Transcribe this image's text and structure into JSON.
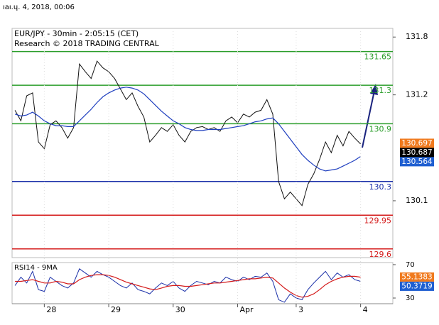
{
  "timestamp": "ıaı.ɥ. 4, 2018, 00:06",
  "chart_data": [
    {
      "type": "line",
      "title": "EUR/JPY - 30min - 2:05:15 (CET)",
      "subtitle": "Research © 2018 TRADING CENTRAL",
      "xlim": [
        -0.5,
        64.5
      ],
      "ylim": [
        129.51,
        131.89
      ],
      "xticks": [
        {
          "value": 5,
          "label": "28"
        },
        {
          "value": 16,
          "label": "29"
        },
        {
          "value": 27,
          "label": "30"
        },
        {
          "value": 38,
          "label": "Apr"
        },
        {
          "value": 48,
          "label": "3"
        },
        {
          "value": 59,
          "label": "4"
        }
      ],
      "yticks": [
        131.8,
        131.2,
        130.1
      ],
      "series": [
        {
          "color": "#111111",
          "values": [
            131.04,
            130.93,
            131.19,
            131.22,
            130.71,
            130.64,
            130.89,
            130.93,
            130.86,
            130.75,
            130.86,
            131.52,
            131.44,
            131.37,
            131.55,
            131.48,
            131.44,
            131.37,
            131.26,
            131.15,
            131.22,
            131.08,
            130.97,
            130.71,
            130.78,
            130.86,
            130.82,
            130.89,
            130.78,
            130.71,
            130.82,
            130.86,
            130.87,
            130.84,
            130.86,
            130.82,
            130.93,
            130.97,
            130.91,
            131.0,
            130.97,
            131.02,
            131.04,
            131.15,
            131.0,
            130.3,
            130.12,
            130.19,
            130.12,
            130.05,
            130.27,
            130.38,
            130.53,
            130.71,
            130.6,
            130.78,
            130.67,
            130.82,
            130.75,
            130.69
          ]
        },
        {
          "color": "#1f3fbf",
          "values": [
            131.0,
            130.98,
            130.99,
            131.02,
            130.98,
            130.93,
            130.9,
            130.88,
            130.88,
            130.87,
            130.87,
            130.93,
            130.99,
            131.05,
            131.12,
            131.18,
            131.22,
            131.25,
            131.27,
            131.28,
            131.27,
            131.25,
            131.21,
            131.15,
            131.09,
            131.03,
            130.98,
            130.93,
            130.9,
            130.86,
            130.84,
            130.83,
            130.83,
            130.84,
            130.84,
            130.84,
            130.85,
            130.86,
            130.87,
            130.88,
            130.9,
            130.92,
            130.93,
            130.95,
            130.96,
            130.9,
            130.82,
            130.74,
            130.66,
            130.58,
            130.52,
            130.47,
            130.43,
            130.41,
            130.42,
            130.43,
            130.46,
            130.49,
            130.52,
            130.56
          ]
        }
      ],
      "levels": [
        {
          "value": 131.65,
          "color": "#2a9d2a"
        },
        {
          "value": 131.3,
          "color": "#2a9d2a"
        },
        {
          "value": 130.9,
          "color": "#2a9d2a"
        },
        {
          "value": 130.3,
          "color": "#1a2fa8"
        },
        {
          "value": 129.95,
          "color": "#d41a1a"
        },
        {
          "value": 129.6,
          "color": "#d41a1a"
        }
      ],
      "price_tags": [
        {
          "value": 130.697,
          "color": "#f07a1e"
        },
        {
          "value": 130.687,
          "color": "#000000"
        },
        {
          "value": 130.564,
          "color": "#1f5fd1"
        }
      ]
    },
    {
      "type": "line",
      "title": "RSI14 - 9MA",
      "ylim": [
        23.2,
        72.5
      ],
      "yticks": [
        70,
        30
      ],
      "series": [
        {
          "color": "#1a2fa8",
          "values": [
            45,
            55,
            48,
            62,
            40,
            38,
            55,
            50,
            45,
            42,
            48,
            65,
            60,
            55,
            62,
            58,
            55,
            50,
            45,
            42,
            48,
            40,
            38,
            35,
            42,
            48,
            45,
            50,
            42,
            38,
            45,
            50,
            48,
            46,
            50,
            48,
            55,
            52,
            50,
            55,
            52,
            56,
            55,
            60,
            50,
            28,
            25,
            35,
            30,
            28,
            40,
            48,
            55,
            62,
            52,
            60,
            55,
            58,
            52,
            50
          ]
        },
        {
          "color": "#d41a1a",
          "values": [
            50,
            50,
            51,
            52,
            50,
            48,
            48,
            50,
            49,
            47,
            47,
            52,
            55,
            57,
            58,
            58,
            57,
            55,
            52,
            49,
            47,
            45,
            43,
            41,
            40,
            42,
            44,
            45,
            45,
            44,
            44,
            45,
            46,
            47,
            48,
            48,
            49,
            50,
            51,
            52,
            53,
            53,
            54,
            55,
            54,
            48,
            42,
            37,
            33,
            31,
            32,
            35,
            40,
            46,
            50,
            53,
            55,
            56,
            56,
            55
          ]
        }
      ],
      "price_tags": [
        {
          "value": 55.1383,
          "color": "#f07a1e"
        },
        {
          "value": 50.3719,
          "color": "#1f5fd1"
        }
      ]
    }
  ]
}
